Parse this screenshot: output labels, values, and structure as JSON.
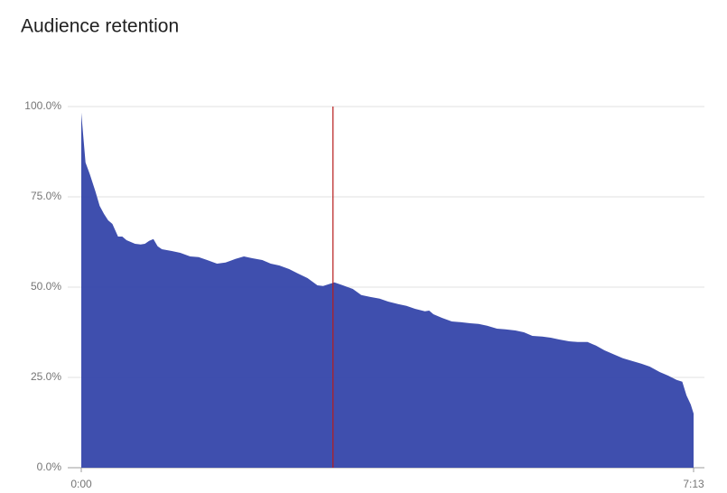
{
  "chart_data": {
    "type": "area",
    "title": "Audience retention",
    "color": "#3949ab",
    "cursor_color": "#b71c1c",
    "cursor_x": 178,
    "x": [
      0,
      3,
      6,
      10,
      13,
      16,
      19,
      22,
      26,
      29,
      32,
      35,
      38,
      42,
      45,
      48,
      51,
      54,
      57,
      64,
      70,
      77,
      83,
      89,
      96,
      102,
      109,
      115,
      121,
      128,
      134,
      140,
      147,
      153,
      160,
      167,
      171,
      179,
      185,
      192,
      198,
      204,
      211,
      217,
      224,
      230,
      236,
      243,
      246,
      249,
      255,
      262,
      268,
      275,
      281,
      287,
      294,
      300,
      307,
      313,
      319,
      326,
      332,
      338,
      345,
      351,
      358,
      364,
      370,
      377,
      383,
      390,
      396,
      402,
      409,
      415,
      421,
      425,
      428,
      431,
      433
    ],
    "values": [
      98.3,
      84.5,
      81.3,
      76.5,
      72.5,
      70.3,
      68.5,
      67.5,
      64,
      64,
      63,
      62.5,
      62,
      61.8,
      62,
      62.8,
      63.3,
      61.3,
      60.5,
      60,
      59.5,
      58.5,
      58.3,
      57.5,
      56.5,
      56.8,
      57.8,
      58.5,
      58,
      57.5,
      56.5,
      56,
      55,
      53.8,
      52.5,
      50.5,
      50.3,
      51.3,
      50.5,
      49.5,
      47.8,
      47.3,
      46.8,
      46,
      45.3,
      44.8,
      44,
      43.3,
      43.5,
      42.5,
      41.5,
      40.5,
      40.3,
      40,
      39.8,
      39.3,
      38.5,
      38.3,
      38,
      37.5,
      36.5,
      36.3,
      36,
      35.5,
      35,
      34.8,
      34.8,
      33.8,
      32.5,
      31.3,
      30.3,
      29.5,
      28.8,
      28,
      26.5,
      25.5,
      24.3,
      23.8,
      20,
      17.5,
      15
    ],
    "xlim": [
      0,
      433
    ],
    "xticks": [
      {
        "value": 0,
        "label": "0:00"
      },
      {
        "value": 433,
        "label": "7:13"
      }
    ],
    "ylim": [
      0,
      100
    ],
    "yticks": [
      {
        "value": 0,
        "label": "0.0%"
      },
      {
        "value": 25,
        "label": "25.0%"
      },
      {
        "value": 50,
        "label": "50.0%"
      },
      {
        "value": 75,
        "label": "75.0%"
      },
      {
        "value": 100,
        "label": "100.0%"
      }
    ],
    "grid": true
  }
}
